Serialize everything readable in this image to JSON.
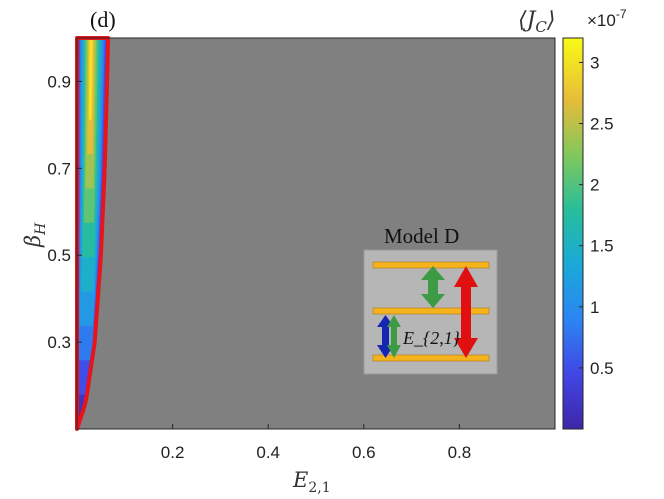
{
  "chart_data": {
    "type": "heatmap",
    "panel_label": "(d)",
    "xlabel": "E_{2,1}",
    "ylabel": "β_H",
    "xlim": [
      0,
      1
    ],
    "ylim": [
      0.1,
      1.0
    ],
    "xticks": [
      0.2,
      0.4,
      0.6,
      0.8
    ],
    "yticks": [
      0.3,
      0.5,
      0.7,
      0.9
    ],
    "xtick_labels": [
      "0.2",
      "0.4",
      "0.6",
      "0.8"
    ],
    "ytick_labels": [
      "0.3",
      "0.5",
      "0.7",
      "0.9"
    ],
    "background_region": "gray",
    "colorbar": {
      "label": "⟨J_C⟩",
      "exponent_label": "×10",
      "exponent": "-7",
      "range": [
        0.0,
        3.2
      ],
      "ticks": [
        0.5,
        1,
        1.5,
        2,
        2.5,
        3
      ],
      "tick_labels": [
        "0.5",
        "1",
        "1.5",
        "2",
        "2.5",
        "3"
      ]
    },
    "active_region": {
      "boundary_color": "#e8141c",
      "x_edge_by_beta": [
        {
          "beta": 0.1,
          "x": 0.0
        },
        {
          "beta": 0.16,
          "x": 0.018
        },
        {
          "beta": 0.3,
          "x": 0.037
        },
        {
          "beta": 0.5,
          "x": 0.05
        },
        {
          "beta": 0.7,
          "x": 0.058
        },
        {
          "beta": 0.9,
          "x": 0.063
        },
        {
          "beta": 1.0,
          "x": 0.065
        }
      ],
      "peak_value": 3.2,
      "peak_location": {
        "x": 0.03,
        "beta": 0.96
      }
    },
    "inset": {
      "title": "Model D",
      "arrow_label": "E_{2,1}",
      "levels": 3,
      "arrows": [
        {
          "from_level": 1,
          "to_level": 2,
          "color": "#1626b0"
        },
        {
          "from_level": 1,
          "to_level": 2,
          "color": "#3d9a45"
        },
        {
          "from_level": 2,
          "to_level": 3,
          "color": "#3d9a45"
        },
        {
          "from_level": 1,
          "to_level": 3,
          "color": "#e01010"
        }
      ]
    }
  }
}
